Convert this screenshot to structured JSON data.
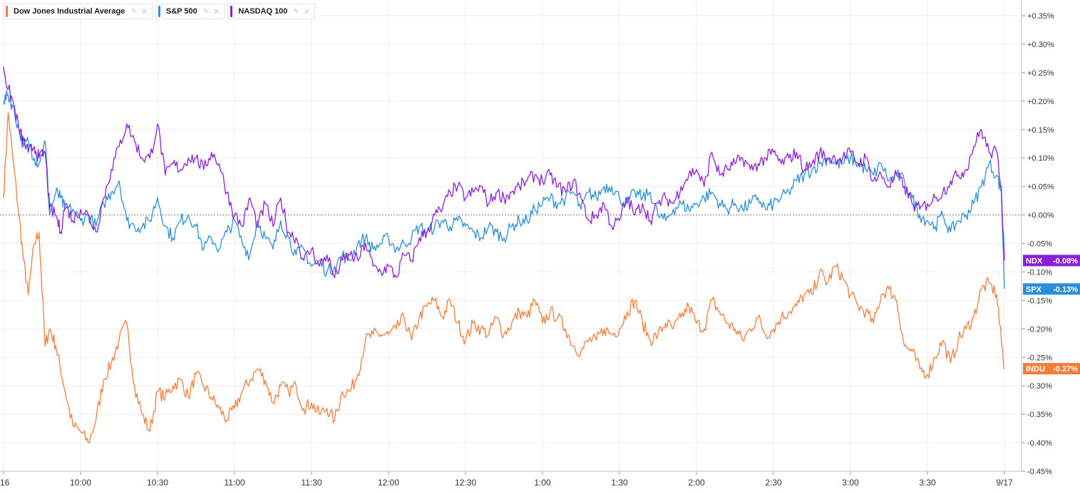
{
  "legend": [
    {
      "label": "Dow Jones Industrial Average",
      "color": "#f07e3a",
      "settings_icon": "pin-icon",
      "close_icon": "close-icon",
      "close_glyph": "✕"
    },
    {
      "label": "S&P 500",
      "color": "#2a8fd8",
      "settings_icon": "pin-icon",
      "close_icon": "close-icon",
      "close_glyph": "✕"
    },
    {
      "label": "NASDAQ 100",
      "color": "#8a20d6",
      "settings_icon": "pin-icon",
      "close_icon": "close-icon",
      "close_glyph": "✕"
    }
  ],
  "chart_data": {
    "type": "line",
    "title": "",
    "xlabel": "",
    "ylabel": "",
    "ylim": [
      -0.45,
      0.35
    ],
    "xlim": [
      9.5,
      16.0
    ],
    "grid": true,
    "baseline": 0,
    "y_ticks": [
      0.35,
      0.3,
      0.25,
      0.2,
      0.15,
      0.1,
      0.05,
      0.0,
      -0.05,
      -0.1,
      -0.15,
      -0.2,
      -0.25,
      -0.3,
      -0.35,
      -0.4,
      -0.45
    ],
    "y_tick_labels": [
      "+0.35%",
      "+0.30%",
      "+0.25%",
      "+0.20%",
      "+0.15%",
      "+0.10%",
      "+0.05%",
      "+0.00%",
      "-0.05%",
      "-0.10%",
      "-0.15%",
      "-0.20%",
      "-0.25%",
      "-0.30%",
      "-0.35%",
      "-0.40%",
      "-0.45%"
    ],
    "x_ticks": [
      {
        "t": 9.5,
        "label": "16"
      },
      {
        "t": 10.0,
        "label": "10:00"
      },
      {
        "t": 10.5,
        "label": "10:30"
      },
      {
        "t": 11.0,
        "label": "11:00"
      },
      {
        "t": 11.5,
        "label": "11:30"
      },
      {
        "t": 12.0,
        "label": "12:00"
      },
      {
        "t": 12.5,
        "label": "12:30"
      },
      {
        "t": 13.0,
        "label": "1:00"
      },
      {
        "t": 13.5,
        "label": "1:30"
      },
      {
        "t": 14.0,
        "label": "2:00"
      },
      {
        "t": 14.5,
        "label": "2:30"
      },
      {
        "t": 15.0,
        "label": "3:00"
      },
      {
        "t": 15.5,
        "label": "3:30"
      },
      {
        "t": 16.0,
        "label": "9/17"
      }
    ],
    "series": [
      {
        "name": "Dow Jones Industrial Average",
        "ticker": "INDU",
        "last_label": "-0.27%",
        "last": -0.27,
        "color": "#f07e3a",
        "x": [
          9.5,
          9.53,
          9.56,
          9.6,
          9.63,
          9.66,
          9.7,
          9.73,
          9.77,
          9.8,
          9.84,
          9.87,
          9.9,
          9.95,
          10.0,
          10.05,
          10.1,
          10.15,
          10.2,
          10.25,
          10.3,
          10.35,
          10.4,
          10.45,
          10.5,
          10.55,
          10.6,
          10.65,
          10.7,
          10.75,
          10.8,
          10.85,
          10.9,
          10.95,
          11.0,
          11.05,
          11.1,
          11.15,
          11.2,
          11.25,
          11.3,
          11.35,
          11.4,
          11.45,
          11.5,
          11.55,
          11.6,
          11.65,
          11.7,
          11.75,
          11.8,
          11.85,
          11.9,
          11.95,
          12.0,
          12.05,
          12.1,
          12.15,
          12.2,
          12.25,
          12.3,
          12.35,
          12.4,
          12.45,
          12.5,
          12.55,
          12.6,
          12.65,
          12.7,
          12.75,
          12.8,
          12.85,
          12.9,
          12.95,
          13.0,
          13.05,
          13.1,
          13.15,
          13.2,
          13.25,
          13.3,
          13.35,
          13.4,
          13.45,
          13.5,
          13.55,
          13.6,
          13.65,
          13.7,
          13.75,
          13.8,
          13.85,
          13.9,
          13.95,
          14.0,
          14.05,
          14.1,
          14.15,
          14.2,
          14.25,
          14.3,
          14.35,
          14.4,
          14.45,
          14.5,
          14.55,
          14.6,
          14.65,
          14.7,
          14.75,
          14.8,
          14.85,
          14.9,
          14.95,
          15.0,
          15.05,
          15.1,
          15.15,
          15.2,
          15.25,
          15.3,
          15.35,
          15.4,
          15.45,
          15.5,
          15.55,
          15.6,
          15.65,
          15.7,
          15.75,
          15.8,
          15.85,
          15.9,
          15.95,
          15.98,
          16.0
        ],
        "y": [
          0.03,
          0.18,
          0.1,
          0.0,
          -0.08,
          -0.14,
          -0.05,
          -0.03,
          -0.23,
          -0.2,
          -0.23,
          -0.27,
          -0.31,
          -0.37,
          -0.38,
          -0.4,
          -0.36,
          -0.29,
          -0.26,
          -0.22,
          -0.19,
          -0.3,
          -0.35,
          -0.38,
          -0.31,
          -0.32,
          -0.3,
          -0.29,
          -0.32,
          -0.28,
          -0.3,
          -0.32,
          -0.34,
          -0.36,
          -0.34,
          -0.31,
          -0.29,
          -0.27,
          -0.29,
          -0.33,
          -0.3,
          -0.31,
          -0.3,
          -0.34,
          -0.33,
          -0.35,
          -0.34,
          -0.36,
          -0.31,
          -0.31,
          -0.28,
          -0.22,
          -0.21,
          -0.21,
          -0.21,
          -0.2,
          -0.18,
          -0.22,
          -0.18,
          -0.16,
          -0.15,
          -0.18,
          -0.15,
          -0.19,
          -0.22,
          -0.19,
          -0.2,
          -0.21,
          -0.18,
          -0.21,
          -0.19,
          -0.17,
          -0.18,
          -0.15,
          -0.19,
          -0.17,
          -0.18,
          -0.2,
          -0.23,
          -0.24,
          -0.22,
          -0.22,
          -0.2,
          -0.21,
          -0.2,
          -0.17,
          -0.15,
          -0.19,
          -0.22,
          -0.21,
          -0.19,
          -0.2,
          -0.18,
          -0.16,
          -0.19,
          -0.2,
          -0.15,
          -0.17,
          -0.19,
          -0.2,
          -0.22,
          -0.2,
          -0.18,
          -0.21,
          -0.2,
          -0.18,
          -0.17,
          -0.16,
          -0.14,
          -0.14,
          -0.1,
          -0.12,
          -0.09,
          -0.11,
          -0.14,
          -0.16,
          -0.17,
          -0.19,
          -0.14,
          -0.13,
          -0.15,
          -0.23,
          -0.24,
          -0.27,
          -0.28,
          -0.25,
          -0.22,
          -0.26,
          -0.22,
          -0.2,
          -0.18,
          -0.13,
          -0.12,
          -0.14,
          -0.22,
          -0.27
        ]
      },
      {
        "name": "S&P 500",
        "ticker": "SPX",
        "last_label": "-0.13%",
        "last": -0.13,
        "color": "#2a8fd8",
        "x": [
          9.5,
          9.53,
          9.56,
          9.6,
          9.63,
          9.66,
          9.7,
          9.73,
          9.77,
          9.8,
          9.84,
          9.87,
          9.9,
          9.95,
          10.0,
          10.05,
          10.1,
          10.15,
          10.2,
          10.25,
          10.3,
          10.35,
          10.4,
          10.45,
          10.5,
          10.55,
          10.6,
          10.65,
          10.7,
          10.75,
          10.8,
          10.85,
          10.9,
          10.95,
          11.0,
          11.05,
          11.1,
          11.15,
          11.2,
          11.25,
          11.3,
          11.35,
          11.4,
          11.45,
          11.5,
          11.55,
          11.6,
          11.65,
          11.7,
          11.75,
          11.8,
          11.85,
          11.9,
          11.95,
          12.0,
          12.05,
          12.1,
          12.15,
          12.2,
          12.25,
          12.3,
          12.35,
          12.4,
          12.45,
          12.5,
          12.55,
          12.6,
          12.65,
          12.7,
          12.75,
          12.8,
          12.85,
          12.9,
          12.95,
          13.0,
          13.05,
          13.1,
          13.15,
          13.2,
          13.25,
          13.3,
          13.35,
          13.4,
          13.45,
          13.5,
          13.55,
          13.6,
          13.65,
          13.7,
          13.75,
          13.8,
          13.85,
          13.9,
          13.95,
          14.0,
          14.05,
          14.1,
          14.15,
          14.2,
          14.25,
          14.3,
          14.35,
          14.4,
          14.45,
          14.5,
          14.55,
          14.6,
          14.65,
          14.7,
          14.75,
          14.8,
          14.85,
          14.9,
          14.95,
          15.0,
          15.05,
          15.1,
          15.15,
          15.2,
          15.25,
          15.3,
          15.35,
          15.4,
          15.45,
          15.5,
          15.55,
          15.6,
          15.65,
          15.7,
          15.75,
          15.8,
          15.85,
          15.9,
          15.95,
          15.98,
          16.0
        ],
        "y": [
          0.2,
          0.21,
          0.19,
          0.15,
          0.12,
          0.13,
          0.1,
          0.09,
          0.13,
          0.0,
          0.04,
          0.03,
          0.01,
          0.01,
          -0.01,
          0.0,
          -0.02,
          0.02,
          0.04,
          0.06,
          -0.01,
          -0.02,
          -0.02,
          -0.01,
          0.03,
          -0.02,
          -0.04,
          -0.01,
          0.0,
          -0.02,
          -0.06,
          -0.04,
          -0.06,
          -0.03,
          -0.01,
          -0.05,
          -0.07,
          -0.01,
          -0.04,
          -0.06,
          -0.01,
          -0.04,
          -0.07,
          -0.06,
          -0.09,
          -0.08,
          -0.1,
          -0.09,
          -0.07,
          -0.08,
          -0.05,
          -0.04,
          -0.06,
          -0.05,
          -0.04,
          -0.06,
          -0.05,
          -0.04,
          -0.02,
          -0.03,
          -0.02,
          -0.01,
          -0.02,
          -0.01,
          -0.02,
          -0.03,
          -0.04,
          -0.02,
          -0.03,
          -0.04,
          -0.02,
          -0.01,
          -0.01,
          0.01,
          0.02,
          0.03,
          0.02,
          0.03,
          0.04,
          0.01,
          0.04,
          0.03,
          0.05,
          0.05,
          0.03,
          0.02,
          0.04,
          0.03,
          0.04,
          0.0,
          -0.01,
          0.01,
          0.02,
          0.01,
          0.02,
          0.03,
          0.04,
          0.02,
          0.01,
          0.02,
          0.01,
          0.02,
          0.03,
          0.01,
          0.02,
          0.03,
          0.04,
          0.06,
          0.07,
          0.08,
          0.09,
          0.1,
          0.09,
          0.09,
          0.1,
          0.09,
          0.08,
          0.07,
          0.09,
          0.06,
          0.07,
          0.06,
          0.03,
          0.0,
          -0.01,
          -0.02,
          0.0,
          -0.03,
          -0.01,
          0.0,
          0.02,
          0.05,
          0.09,
          0.07,
          0.04,
          -0.13
        ]
      },
      {
        "name": "NASDAQ 100",
        "ticker": "NDX",
        "last_label": "-0.08%",
        "last": -0.08,
        "color": "#8a20d6",
        "x": [
          9.5,
          9.53,
          9.56,
          9.6,
          9.63,
          9.66,
          9.7,
          9.73,
          9.77,
          9.8,
          9.84,
          9.87,
          9.9,
          9.95,
          10.0,
          10.05,
          10.1,
          10.15,
          10.2,
          10.25,
          10.3,
          10.35,
          10.4,
          10.45,
          10.5,
          10.55,
          10.6,
          10.65,
          10.7,
          10.75,
          10.8,
          10.85,
          10.9,
          10.95,
          11.0,
          11.05,
          11.1,
          11.15,
          11.2,
          11.25,
          11.3,
          11.35,
          11.4,
          11.45,
          11.5,
          11.55,
          11.6,
          11.65,
          11.7,
          11.75,
          11.8,
          11.85,
          11.9,
          11.95,
          12.0,
          12.05,
          12.1,
          12.15,
          12.2,
          12.25,
          12.3,
          12.35,
          12.4,
          12.45,
          12.5,
          12.55,
          12.6,
          12.65,
          12.7,
          12.75,
          12.8,
          12.85,
          12.9,
          12.95,
          13.0,
          13.05,
          13.1,
          13.15,
          13.2,
          13.25,
          13.3,
          13.35,
          13.4,
          13.45,
          13.5,
          13.55,
          13.6,
          13.65,
          13.7,
          13.75,
          13.8,
          13.85,
          13.9,
          13.95,
          14.0,
          14.05,
          14.1,
          14.15,
          14.2,
          14.25,
          14.3,
          14.35,
          14.4,
          14.45,
          14.5,
          14.55,
          14.6,
          14.65,
          14.7,
          14.75,
          14.8,
          14.85,
          14.9,
          14.95,
          15.0,
          15.05,
          15.1,
          15.15,
          15.2,
          15.25,
          15.3,
          15.35,
          15.4,
          15.45,
          15.5,
          15.55,
          15.6,
          15.65,
          15.7,
          15.75,
          15.8,
          15.85,
          15.9,
          15.95,
          15.98,
          16.0
        ],
        "y": [
          0.26,
          0.22,
          0.2,
          0.15,
          0.13,
          0.11,
          0.12,
          0.1,
          0.11,
          0.01,
          0.0,
          -0.03,
          0.02,
          -0.01,
          0.01,
          0.0,
          -0.03,
          0.03,
          0.08,
          0.12,
          0.16,
          0.13,
          0.1,
          0.1,
          0.16,
          0.07,
          0.09,
          0.08,
          0.1,
          0.1,
          0.08,
          0.11,
          0.09,
          0.04,
          0.0,
          -0.02,
          0.03,
          -0.02,
          0.02,
          -0.02,
          0.03,
          -0.03,
          -0.04,
          -0.08,
          -0.06,
          -0.09,
          -0.07,
          -0.11,
          -0.08,
          -0.07,
          -0.08,
          -0.05,
          -0.09,
          -0.1,
          -0.09,
          -0.11,
          -0.07,
          -0.08,
          -0.04,
          -0.03,
          0.0,
          0.01,
          0.04,
          0.05,
          0.03,
          0.04,
          0.05,
          0.02,
          0.04,
          0.03,
          0.04,
          0.05,
          0.06,
          0.07,
          0.06,
          0.07,
          0.05,
          0.04,
          0.06,
          0.03,
          -0.01,
          0.0,
          0.02,
          -0.02,
          -0.01,
          0.03,
          0.0,
          0.02,
          -0.01,
          0.02,
          0.03,
          0.02,
          0.05,
          0.07,
          0.08,
          0.05,
          0.11,
          0.07,
          0.08,
          0.09,
          0.1,
          0.08,
          0.09,
          0.1,
          0.11,
          0.09,
          0.1,
          0.11,
          0.08,
          0.09,
          0.11,
          0.1,
          0.1,
          0.1,
          0.11,
          0.09,
          0.1,
          0.06,
          0.07,
          0.05,
          0.07,
          0.05,
          0.02,
          0.01,
          0.02,
          0.03,
          0.04,
          0.06,
          0.07,
          0.08,
          0.12,
          0.15,
          0.11,
          0.11,
          0.05,
          -0.08
        ]
      }
    ]
  }
}
